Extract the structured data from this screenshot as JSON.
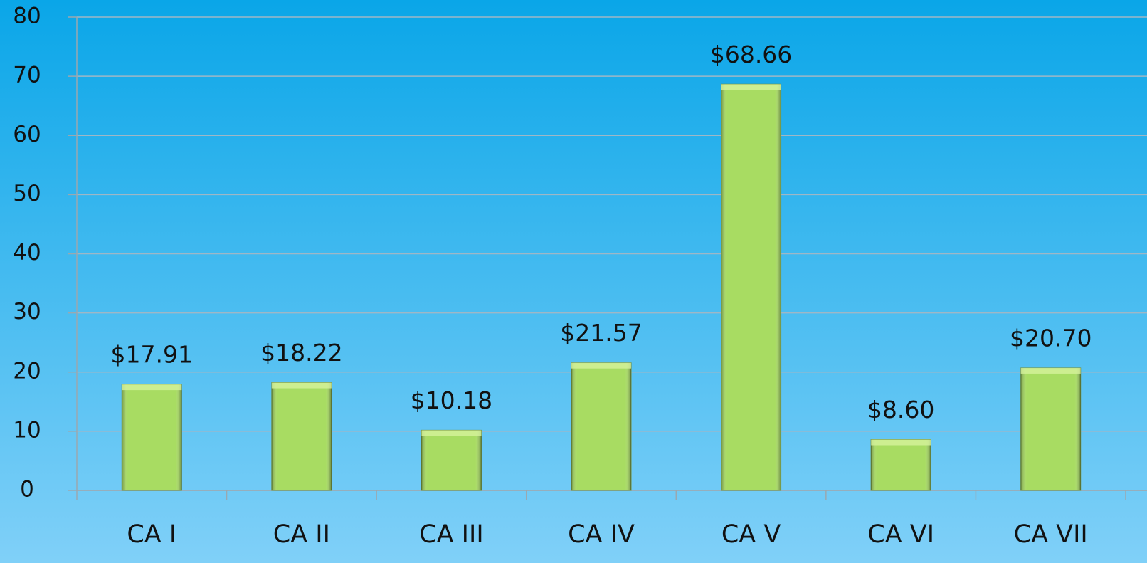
{
  "chart_data": {
    "type": "bar",
    "categories": [
      "CA I",
      "CA II",
      "CA III",
      "CA IV",
      "CA V",
      "CA VI",
      "CA VII"
    ],
    "values": [
      17.91,
      18.22,
      10.18,
      21.57,
      68.66,
      8.6,
      20.7
    ],
    "value_labels": [
      "$17.91",
      "$18.22",
      "$10.18",
      "$21.57",
      "$68.66",
      "$8.60",
      "$20.70"
    ],
    "color": "#a8dc62",
    "ylim": [
      0,
      80
    ],
    "yticks": [
      0,
      10,
      20,
      30,
      40,
      50,
      60,
      70,
      80
    ],
    "grid": true
  }
}
